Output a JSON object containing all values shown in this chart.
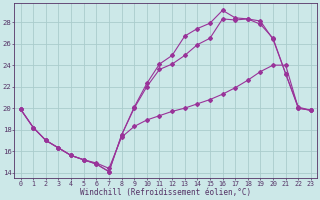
{
  "bg_color": "#cce8e8",
  "grid_color": "#aacccc",
  "line_color": "#993399",
  "xlabel": "Windchill (Refroidissement éolien,°C)",
  "xlim_min": -0.5,
  "xlim_max": 23.5,
  "ylim_min": 13.5,
  "ylim_max": 29.8,
  "yticks": [
    14,
    16,
    18,
    20,
    22,
    24,
    26,
    28
  ],
  "xticks": [
    0,
    1,
    2,
    3,
    4,
    5,
    6,
    7,
    8,
    9,
    10,
    11,
    12,
    13,
    14,
    15,
    16,
    17,
    18,
    19,
    20,
    21,
    22,
    23
  ],
  "series": [
    {
      "x": [
        0,
        1,
        2,
        3,
        4,
        5,
        6,
        7,
        8,
        9,
        10,
        11,
        12,
        13,
        14,
        15,
        16,
        17,
        18,
        19,
        20,
        21,
        22,
        23
      ],
      "y": [
        19.9,
        18.2,
        17.0,
        16.3,
        15.6,
        15.2,
        14.8,
        14.1,
        17.5,
        20.1,
        22.3,
        24.1,
        24.9,
        26.7,
        27.4,
        27.9,
        29.1,
        28.4,
        28.3,
        28.1,
        26.4,
        23.2,
        20.1,
        19.8
      ]
    },
    {
      "x": [
        0,
        1,
        2,
        3,
        4,
        5,
        6,
        7,
        8,
        9,
        10,
        11,
        12,
        13,
        14,
        15,
        16,
        17,
        18,
        19,
        20,
        21,
        22,
        23
      ],
      "y": [
        19.9,
        18.2,
        17.0,
        16.3,
        15.6,
        15.2,
        14.8,
        14.1,
        17.5,
        20.0,
        22.0,
        23.6,
        24.1,
        24.9,
        25.9,
        26.5,
        28.3,
        28.2,
        28.3,
        27.8,
        26.5,
        23.2,
        20.0,
        19.8
      ]
    },
    {
      "x": [
        0,
        1,
        2,
        3,
        4,
        5,
        6,
        7,
        8,
        9,
        10,
        11,
        12,
        13,
        14,
        15,
        16,
        17,
        18,
        19,
        20,
        21,
        22,
        23
      ],
      "y": [
        19.9,
        18.2,
        17.0,
        16.3,
        15.6,
        15.2,
        14.9,
        14.4,
        17.3,
        18.3,
        18.9,
        19.3,
        19.7,
        20.0,
        20.4,
        20.8,
        21.3,
        21.9,
        22.6,
        23.4,
        24.0,
        24.0,
        20.0,
        19.8
      ]
    }
  ]
}
